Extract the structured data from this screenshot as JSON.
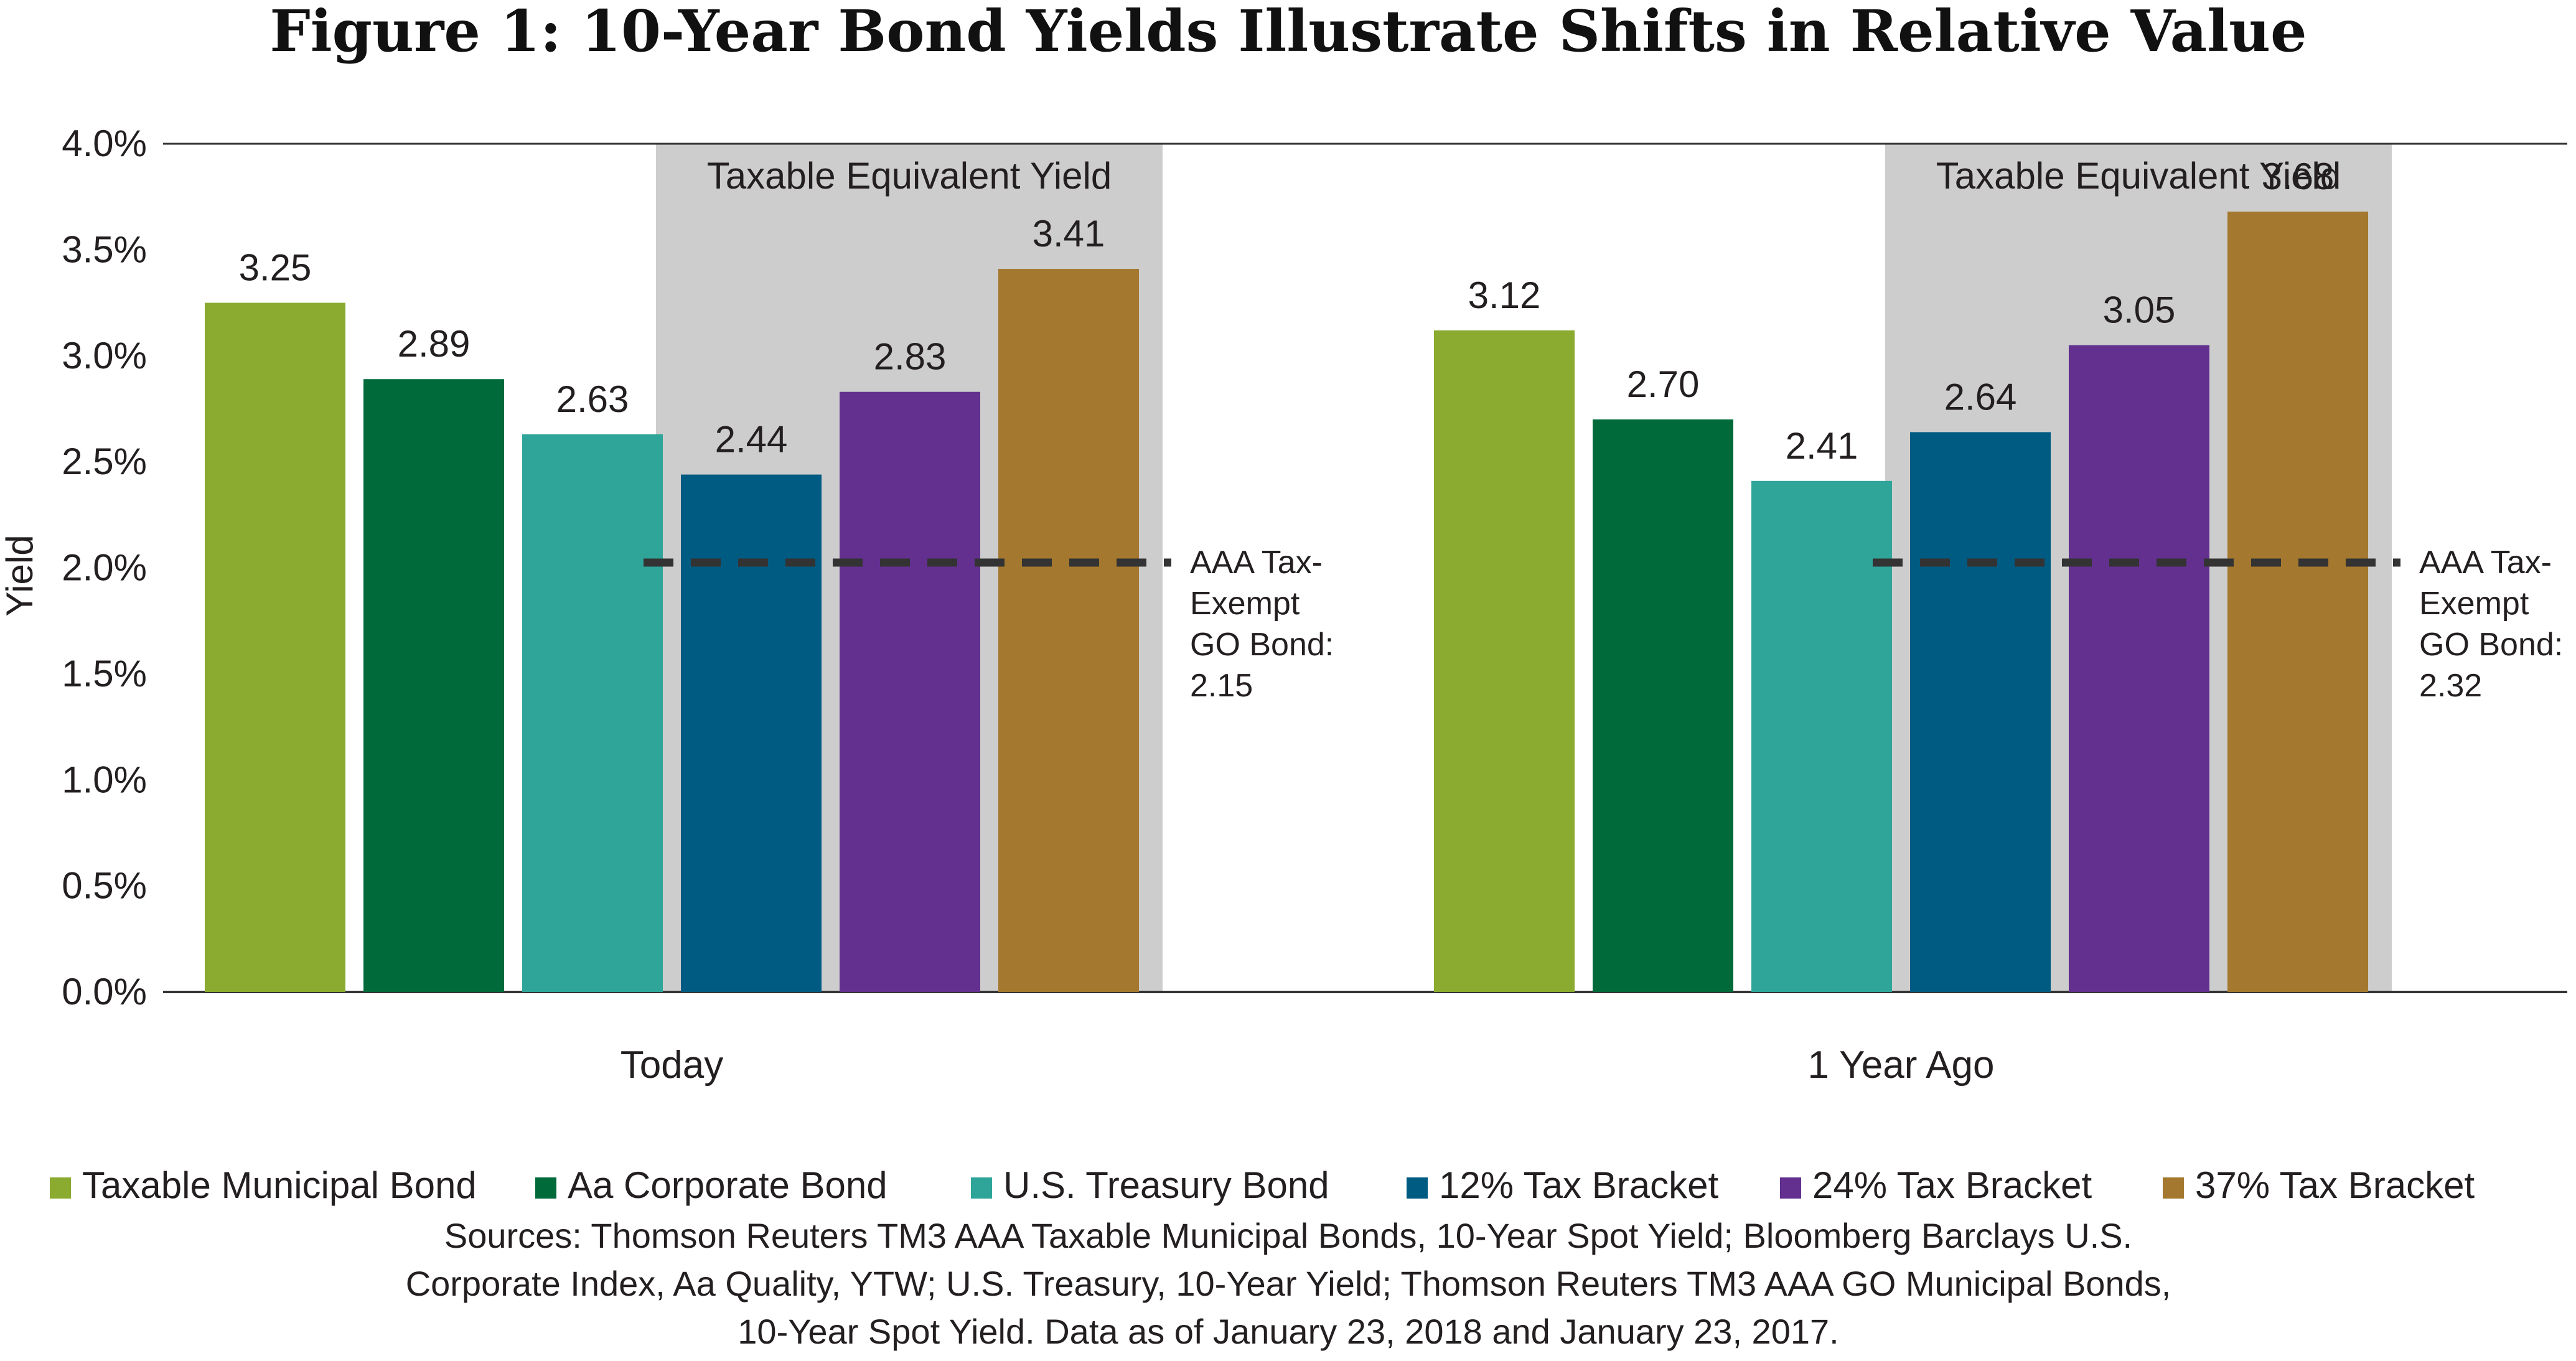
{
  "chart_data": {
    "type": "bar",
    "title": "Figure 1: 10-Year Bond Yields Illustrate Shifts in Relative Value",
    "ylabel": "Yield",
    "xlabel": "",
    "ylim": [
      0,
      4.0
    ],
    "y_ticks": [
      "0.0%",
      "0.5%",
      "1.0%",
      "1.5%",
      "2.0%",
      "2.5%",
      "3.0%",
      "3.5%",
      "4.0%"
    ],
    "y_tick_values": [
      0,
      0.5,
      1.0,
      1.5,
      2.0,
      2.5,
      3.0,
      3.5,
      4.0
    ],
    "categories": [
      "Today",
      "1 Year Ago"
    ],
    "series": [
      {
        "name": "Taxable Municipal Bond",
        "color": "#8aab2f",
        "values": [
          3.25,
          3.12
        ],
        "labels": [
          "3.25",
          "3.12"
        ]
      },
      {
        "name": "Aa Corporate Bond",
        "color": "#006a3a",
        "values": [
          2.89,
          2.7
        ],
        "labels": [
          "2.89",
          "2.70"
        ]
      },
      {
        "name": "U.S. Treasury Bond",
        "color": "#2fa59a",
        "values": [
          2.63,
          2.41
        ],
        "labels": [
          "2.63",
          "2.41"
        ]
      },
      {
        "name": "12% Tax Bracket",
        "color": "#005b82",
        "values": [
          2.44,
          2.64
        ],
        "labels": [
          "2.44",
          "2.64"
        ]
      },
      {
        "name": "24% Tax Bracket",
        "color": "#63308f",
        "values": [
          2.83,
          3.05
        ],
        "labels": [
          "2.83",
          "3.05"
        ]
      },
      {
        "name": "37% Tax Bracket",
        "color": "#a4782e",
        "values": [
          3.41,
          3.68
        ],
        "labels": [
          "3.41",
          "3.68"
        ]
      }
    ],
    "shaded_region_label": "Taxable Equivalent Yield",
    "shaded_color": "#cdcdcd",
    "reference_lines": [
      {
        "category": "Today",
        "value": 2.15,
        "lines": [
          "AAA Tax-",
          "Exempt",
          "GO Bond:",
          "2.15"
        ]
      },
      {
        "category": "1 Year Ago",
        "value": 2.32,
        "lines": [
          "AAA Tax-",
          "Exempt",
          "GO Bond:",
          "2.32"
        ]
      }
    ],
    "legend_position": "bottom",
    "grid": false
  },
  "sources": [
    "Sources: Thomson Reuters TM3 AAA Taxable Municipal Bonds, 10-Year Spot Yield; Bloomberg Barclays U.S.",
    "Corporate Index, Aa Quality, YTW; U.S. Treasury, 10-Year Yield; Thomson Reuters TM3 AAA GO Municipal Bonds,",
    "10-Year Spot Yield. Data as of January 23, 2018 and January 23, 2017."
  ]
}
